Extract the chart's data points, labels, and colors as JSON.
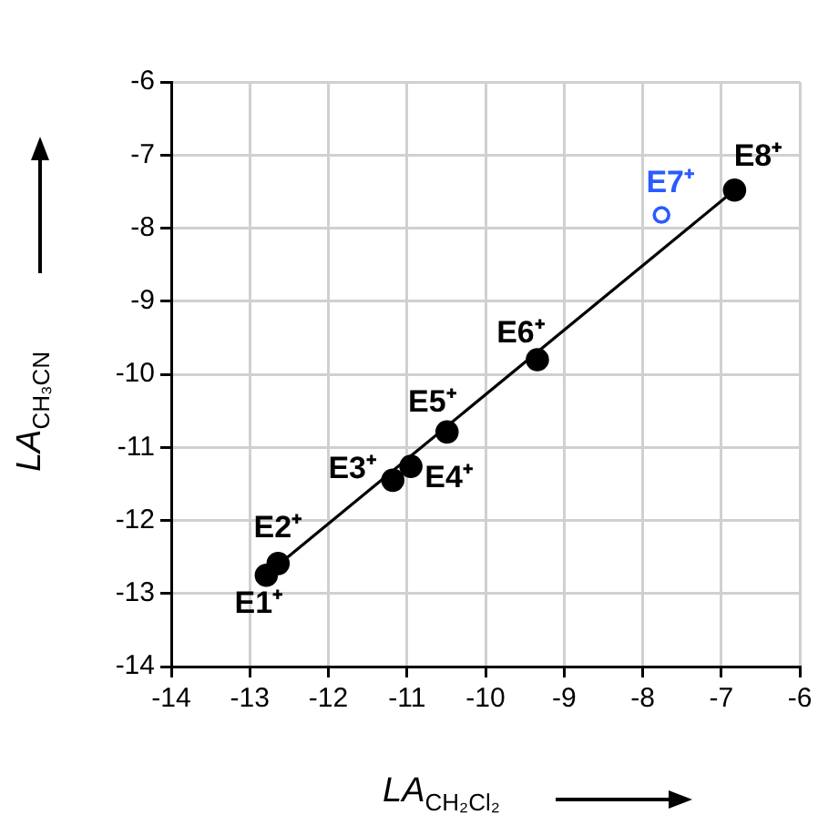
{
  "chart_data": {
    "type": "scatter",
    "xlabel": "LA$_{CH₂Cl₂}$",
    "ylabel": "LA$_{CH₃CN}$",
    "xlim": [
      -14,
      -6
    ],
    "xticks": [
      -14,
      -13,
      -12,
      -11,
      -10,
      -9,
      -8,
      -7,
      -6
    ],
    "ylim": [
      -14,
      -6
    ],
    "yticks": [
      -14,
      -13,
      -12,
      -11,
      -10,
      -9,
      -8,
      -7,
      -6
    ],
    "grid": true,
    "legend": false,
    "marker": "circle",
    "series": [
      {
        "color": "#000000",
        "x": [
          -12.79,
          -12.64,
          -11.18,
          -10.95,
          -10.49,
          -9.34,
          -6.83
        ],
        "values": [
          -12.75,
          -12.59,
          -11.45,
          -11.26,
          -10.79,
          -9.8,
          -7.48
        ]
      },
      {
        "color": "#2a5bff",
        "x": [
          -7.76
        ],
        "values": [
          -7.82
        ]
      },
      {
        "type": "line",
        "color": "#000000",
        "marker": "none",
        "x": [
          -12.64,
          -6.83
        ],
        "values": [
          -12.61,
          -7.48
        ]
      }
    ],
    "annotations": [
      {
        "text": "E1⁺",
        "x": -12.79,
        "y": -12.75
      },
      {
        "text": "E2⁺",
        "x": -12.64,
        "y": -12.59
      },
      {
        "text": "E3⁺",
        "x": -11.18,
        "y": -11.45
      },
      {
        "text": "E4⁺",
        "x": -10.95,
        "y": -11.26
      },
      {
        "text": "E5⁺",
        "x": -10.49,
        "y": -10.79
      },
      {
        "text": "E6⁺",
        "x": -9.34,
        "y": -9.8
      },
      {
        "text": "E7⁺",
        "x": -7.76,
        "y": -7.82
      },
      {
        "text": "E8⁺",
        "x": -6.83,
        "y": -7.48
      }
    ]
  }
}
